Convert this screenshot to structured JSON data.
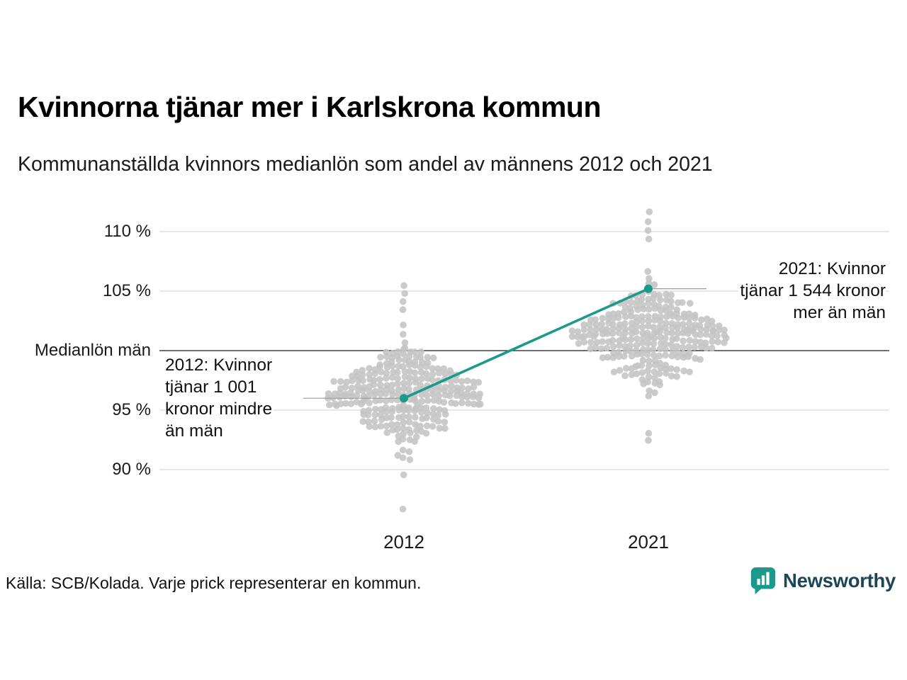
{
  "title": "Kvinnorna tjänar mer i Karlskrona kommun",
  "subtitle": "Kommunanställda kvinnors medianlön som andel av männens 2012 och 2021",
  "footer": {
    "source": "Källa: SCB/Kolada. Varje prick representerar en kommun."
  },
  "branding": {
    "name": "Newsworthy",
    "icon": "bar-chart-speech-bubble-icon",
    "teal": "#1b998b",
    "text_color": "#1d4556"
  },
  "annotations_text": {
    "y2012": {
      "lines": [
        "2012: Kvinnor",
        "tjänar 1 001",
        "kronor mindre",
        "än män"
      ]
    },
    "y2021": {
      "lines": [
        "2021: Kvinnor",
        "tjänar 1 544 kronor",
        "mer än män"
      ]
    }
  },
  "chart_data": {
    "type": "beeswarm",
    "title": "Kvinnorna tjänar mer i Karlskrona kommun",
    "subtitle": "Kommunanställda kvinnors medianlön som andel av männens 2012 och 2021",
    "unit": "kvinnors medianlön som andel av männens (%)",
    "grid": true,
    "ylim": [
      86,
      113
    ],
    "x_categories": [
      "2012",
      "2021"
    ],
    "ylabel_ticks": [
      {
        "value": 110,
        "label": "110 %",
        "emphasis": false
      },
      {
        "value": 105,
        "label": "105 %",
        "emphasis": false
      },
      {
        "value": 100,
        "label": "Medianlön män",
        "emphasis": true
      },
      {
        "value": 95,
        "label": "95 %",
        "emphasis": false
      },
      {
        "value": 90,
        "label": "90 %",
        "emphasis": false
      }
    ],
    "groups": [
      {
        "label": "2012",
        "n_total": 290,
        "n_generated": 284,
        "mean": 96.3,
        "sd": 1.9,
        "seed": 7,
        "extra_values": [
          105.4,
          104.8,
          104.1,
          103.5,
          89.6,
          86.6
        ]
      },
      {
        "label": "2021",
        "n_total": 290,
        "n_generated": 284,
        "mean": 101.3,
        "sd": 2.0,
        "seed": 13,
        "extra_values": [
          111.6,
          110.8,
          110.1,
          109.3,
          93.1,
          92.4
        ]
      }
    ],
    "highlight": {
      "municipality": "Karlskrona kommun",
      "color": "#1b998b",
      "series": [
        {
          "x": "2012",
          "value": 96.0
        },
        {
          "x": "2021",
          "value": 105.2
        }
      ]
    },
    "annotations": [
      {
        "x": "2012",
        "text": "2012: Kvinnor tjänar 1 001 kronor mindre än män"
      },
      {
        "x": "2021",
        "text": "2021: Kvinnor tjänar 1 544 kronor mer än män"
      }
    ],
    "note": "Varje prick representerar en kommun",
    "source": "SCB/Kolada"
  }
}
